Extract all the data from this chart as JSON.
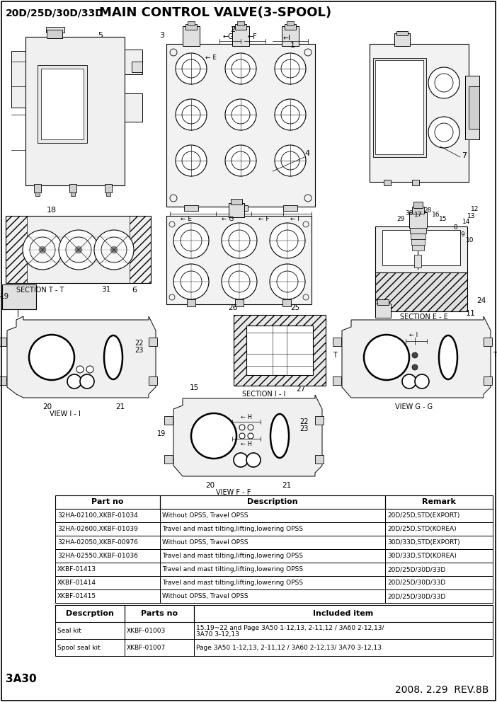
{
  "title_left": "20D/25D/30D/33D",
  "title_right": "MAIN CONTROL VALVE(3-SPOOL)",
  "bg_color": "#ffffff",
  "table1_headers": [
    "Part no",
    "Description",
    "Remark"
  ],
  "table1_rows": [
    [
      "32HA-02100,XKBF-01034",
      "Without OPSS, Travel OPSS",
      "20D/25D,STD(EXPORT)"
    ],
    [
      "32HA-02600,XKBF-01039",
      "Travel and mast tilting,lifting,lowering OPSS",
      "20D/25D,STD(KOREA)"
    ],
    [
      "32HA-02050,XKBF-00976",
      "Without OPSS, Travel OPSS",
      "30D/33D,STD(EXPORT)"
    ],
    [
      "32HA-02550,XKBF-01036",
      "Travel and mast tilting,lifting,lowering OPSS",
      "30D/33D,STD(KOREA)"
    ],
    [
      "XKBF-01413",
      "Travel and mast tilting,lifting,lowering OPSS",
      "20D/25D/30D/33D"
    ],
    [
      "XKBF-01414",
      "Travel and mast tilting,lifting,lowering OPSS",
      "20D/25D/30D/33D"
    ],
    [
      "XKBF-01415",
      "Without OPSS, Travel OPSS",
      "20D/25D/30D/33D"
    ]
  ],
  "table2_headers": [
    "Descrption",
    "Parts no",
    "Included item"
  ],
  "table2_rows": [
    [
      "Seal kit",
      "XKBF-01003",
      "15,19~22 and Page 3A50 1-12,13, 2-11,12 / 3A60 2-12,13/\n3A70 3-12,13"
    ],
    [
      "Spool seal kit",
      "XKBF-01007",
      "Page 3A50 1-12,13, 2-11,12 / 3A60 2-12,13/ 3A70 3-12,13"
    ]
  ],
  "footer_left": "3A30",
  "footer_right": "2008. 2.29  REV.8B"
}
